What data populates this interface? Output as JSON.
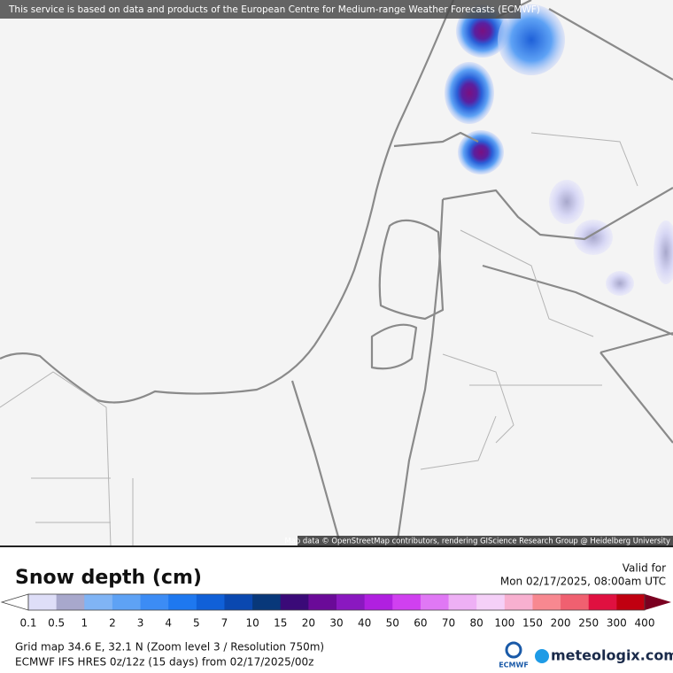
{
  "banner": "This service is based on data and products of the European Centre for Medium-range Weather Forecasts (ECMWF)",
  "attribution": "Map data © OpenStreetMap contributors, rendering GIScience Research Group @ Heidelberg University",
  "title": "Snow depth (cm)",
  "valid_label": "Valid for",
  "valid_time": "Mon 02/17/2025, 08:00am UTC",
  "legend": {
    "values": [
      0.1,
      0.5,
      1,
      2,
      3,
      4,
      5,
      7,
      10,
      15,
      20,
      30,
      40,
      50,
      60,
      70,
      80,
      100,
      150,
      200,
      250,
      300,
      400
    ],
    "colors": [
      "#dedef8",
      "#a8a8cc",
      "#80b4f5",
      "#5ea2f5",
      "#3c8cf5",
      "#1e78f0",
      "#1060d8",
      "#0a48b0",
      "#08387a",
      "#3a0a78",
      "#6a0a98",
      "#8a18c0",
      "#b020e0",
      "#d040f0",
      "#e078f5",
      "#eeb0f5",
      "#f5d0f8",
      "#f8b0d0",
      "#f88890",
      "#f06070",
      "#e01040",
      "#c00010"
    ],
    "under_color": "#ffffff",
    "over_color": "#7a0020"
  },
  "info": [
    "Grid map 34.6 E, 32.1 N (Zoom level 3 / Resolution 750m)",
    "ECMWF IFS HRES 0z/12z (15 days) from 02/17/2025/00z"
  ],
  "logos": {
    "ecmwf": "ECMWF",
    "meteologix": "meteologix.com"
  }
}
